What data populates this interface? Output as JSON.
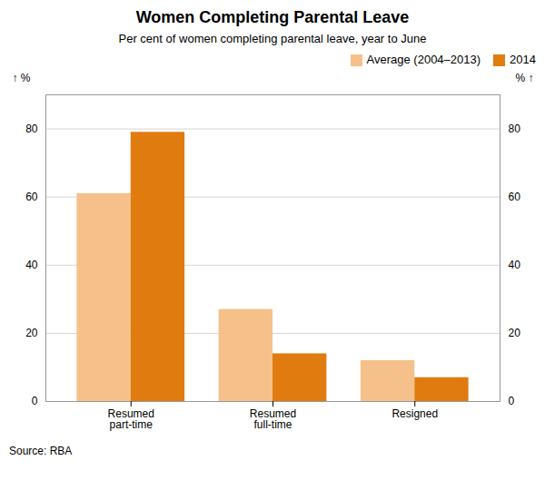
{
  "chart_data": {
    "type": "bar",
    "title": "Women Completing Parental Leave",
    "subtitle": "Per cent of women completing parental leave, year to June",
    "source": "Source: RBA",
    "categories": [
      "Resumed\npart-time",
      "Resumed\nfull-time",
      "Resigned"
    ],
    "series": [
      {
        "name": "Average (2004–2013)",
        "color": "#F5C08A",
        "values": [
          61,
          27,
          12
        ]
      },
      {
        "name": "2014",
        "color": "#E07B10",
        "values": [
          79,
          14,
          7
        ]
      }
    ],
    "ylabel": "%",
    "y2label": "%",
    "ylim": [
      0,
      90
    ],
    "yticks": [
      0,
      20,
      40,
      60,
      80
    ],
    "y2lim": [
      0,
      90
    ],
    "y2ticks": [
      0,
      20,
      40,
      60,
      80
    ],
    "grid": true,
    "legend": "upper right"
  }
}
